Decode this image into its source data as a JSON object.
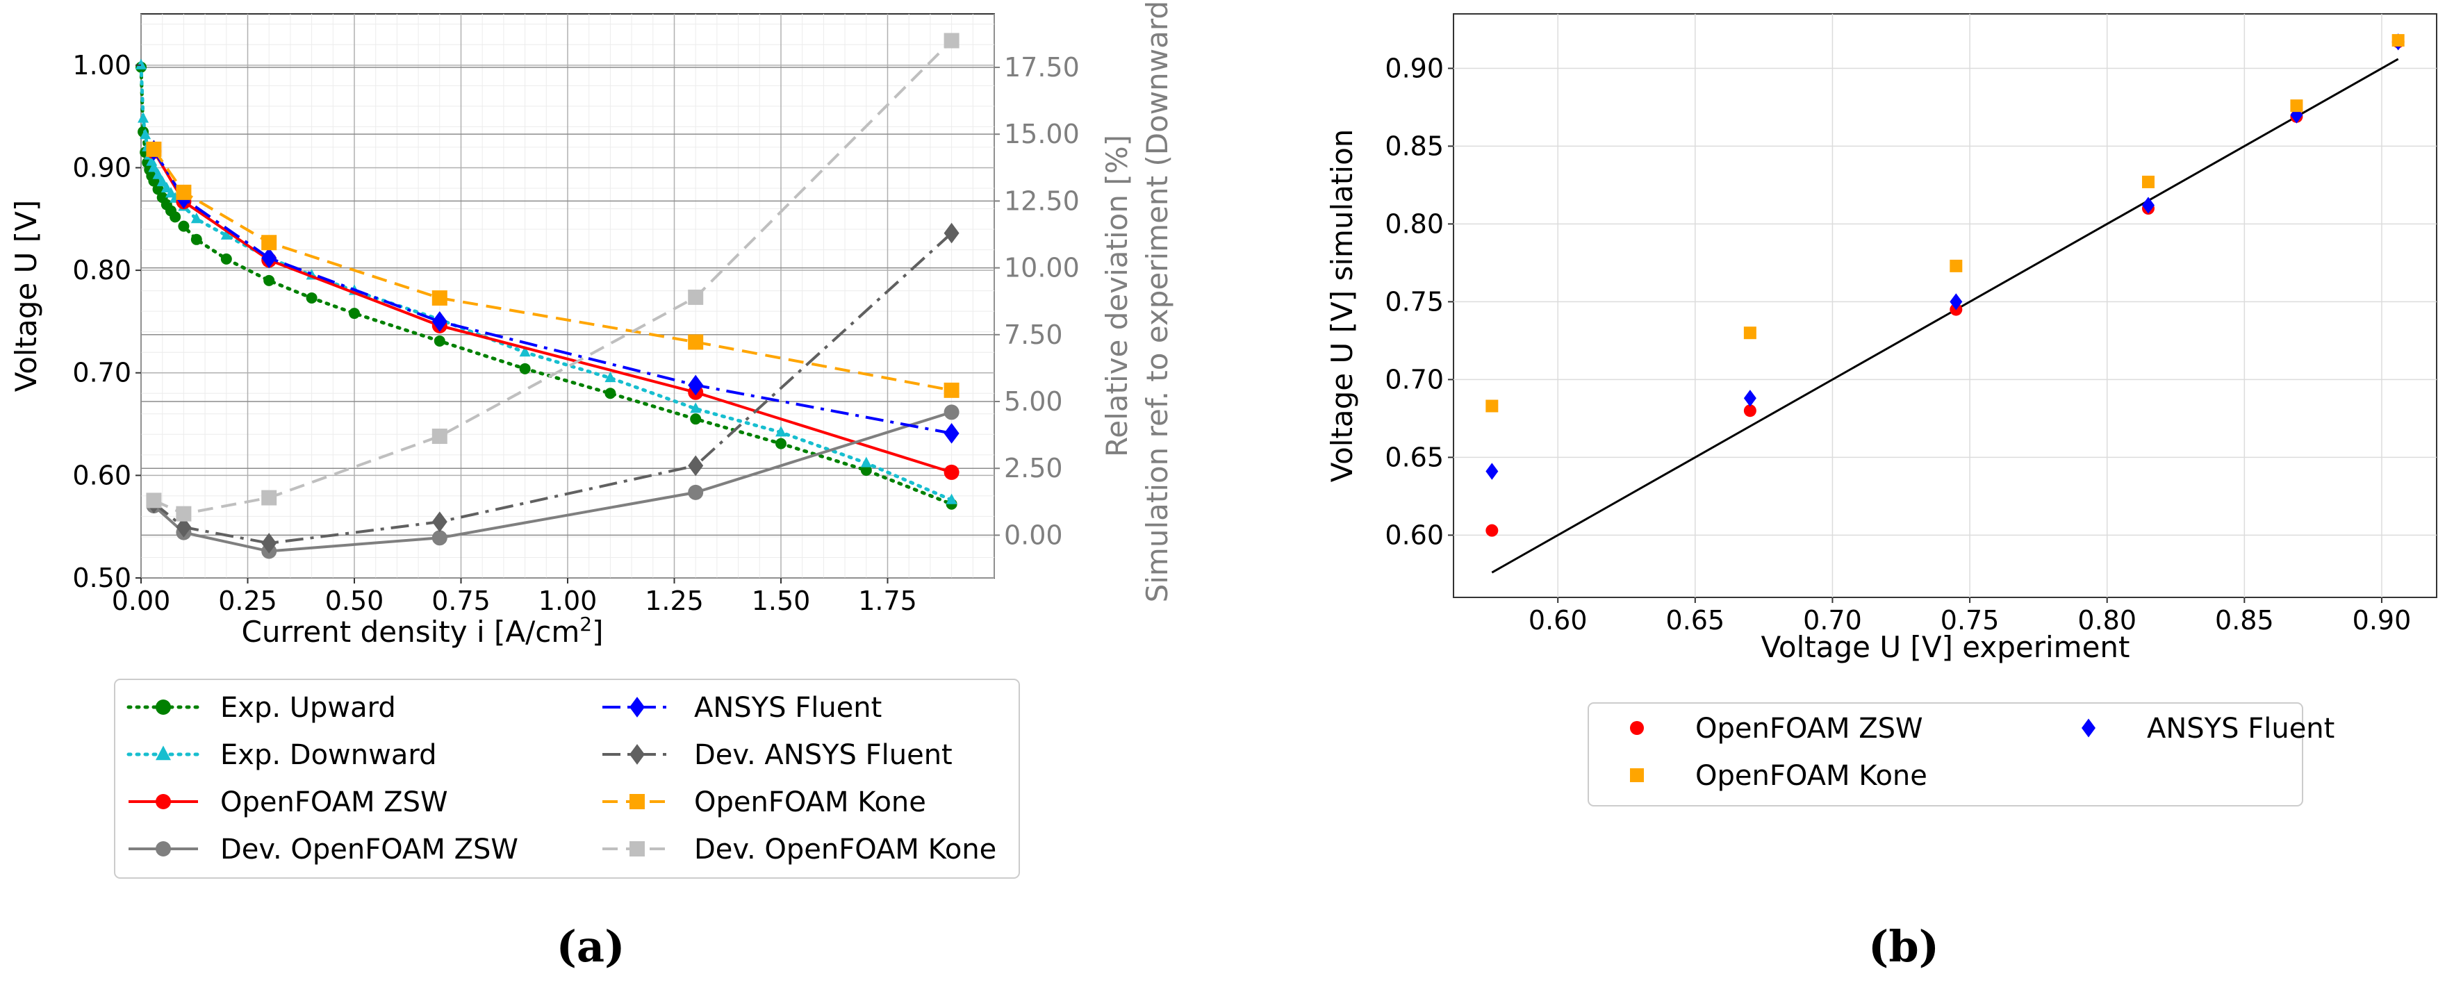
{
  "figure": {
    "panel_a_label": "(a)",
    "panel_b_label": "(b)"
  },
  "chart_data": [
    {
      "type": "line",
      "panel": "(a)",
      "xlabel": "Current density i [A/cm",
      "xlabel_sup": "2",
      "xlabel_tail": "]",
      "ylabel": "Voltage U [V]",
      "y2label_line1": "Relative deviation [%]",
      "y2label_line2": "Simulation ref. to experiment (Downward)",
      "xlim": [
        0.0,
        2.0
      ],
      "ylim": [
        0.5,
        1.05
      ],
      "y2lim": [
        -1.6,
        19.5
      ],
      "xticks": [
        0.0,
        0.25,
        0.5,
        0.75,
        1.0,
        1.25,
        1.5,
        1.75
      ],
      "xtick_labels": [
        "0.00",
        "0.25",
        "0.50",
        "0.75",
        "1.00",
        "1.25",
        "1.50",
        "1.75"
      ],
      "yticks": [
        0.5,
        0.6,
        0.7,
        0.8,
        0.9,
        1.0
      ],
      "ytick_labels": [
        "0.50",
        "0.60",
        "0.70",
        "0.80",
        "0.90",
        "1.00"
      ],
      "y2ticks": [
        0.0,
        2.5,
        5.0,
        7.5,
        10.0,
        12.5,
        15.0,
        17.5
      ],
      "y2tick_labels": [
        "0.00",
        "2.50",
        "5.00",
        "7.50",
        "10.00",
        "12.50",
        "15.00",
        "17.50"
      ],
      "grid": true,
      "legend_position": "below",
      "series": [
        {
          "name": "Exp. Upward",
          "axis": "left",
          "color": "#008000",
          "dash": "dotted",
          "marker": "circle",
          "x": [
            0.0,
            0.005,
            0.01,
            0.015,
            0.02,
            0.025,
            0.03,
            0.04,
            0.05,
            0.06,
            0.07,
            0.08,
            0.1,
            0.13,
            0.2,
            0.3,
            0.4,
            0.5,
            0.7,
            0.9,
            1.1,
            1.3,
            1.5,
            1.7,
            1.9
          ],
          "y": [
            0.998,
            0.935,
            0.915,
            0.905,
            0.898,
            0.892,
            0.887,
            0.879,
            0.871,
            0.864,
            0.858,
            0.852,
            0.843,
            0.83,
            0.811,
            0.79,
            0.773,
            0.758,
            0.731,
            0.704,
            0.68,
            0.655,
            0.631,
            0.605,
            0.572
          ]
        },
        {
          "name": "Exp. Downward",
          "axis": "left",
          "color": "#17becf",
          "dash": "dotted",
          "marker": "triangle",
          "x": [
            0.0,
            0.005,
            0.01,
            0.015,
            0.02,
            0.025,
            0.03,
            0.04,
            0.05,
            0.06,
            0.07,
            0.08,
            0.1,
            0.13,
            0.2,
            0.3,
            0.4,
            0.5,
            0.7,
            0.9,
            1.1,
            1.3,
            1.5,
            1.7,
            1.9
          ],
          "y": [
            1.0,
            0.948,
            0.932,
            0.92,
            0.912,
            0.906,
            0.9,
            0.893,
            0.886,
            0.88,
            0.875,
            0.87,
            0.862,
            0.85,
            0.834,
            0.812,
            0.795,
            0.78,
            0.752,
            0.72,
            0.695,
            0.665,
            0.642,
            0.612,
            0.576
          ]
        },
        {
          "name": "OpenFOAM ZSW",
          "axis": "left",
          "color": "#ff0000",
          "dash": "solid",
          "marker": "circle",
          "x": [
            0.03,
            0.1,
            0.3,
            0.7,
            1.3,
            1.9
          ],
          "y": [
            0.916,
            0.867,
            0.81,
            0.746,
            0.681,
            0.603
          ]
        },
        {
          "name": "Dev. OpenFOAM ZSW",
          "axis": "right",
          "color": "#7f7f7f",
          "dash": "solid",
          "marker": "circle",
          "x": [
            0.03,
            0.1,
            0.3,
            0.7,
            1.3,
            1.9
          ],
          "y": [
            1.1,
            0.1,
            -0.6,
            -0.1,
            1.6,
            4.6
          ]
        },
        {
          "name": "ANSYS Fluent",
          "axis": "left",
          "color": "#0000ff",
          "dash": "dashdot",
          "marker": "diamond",
          "x": [
            0.03,
            0.1,
            0.3,
            0.7,
            1.3,
            1.9
          ],
          "y": [
            0.917,
            0.87,
            0.812,
            0.75,
            0.688,
            0.641
          ]
        },
        {
          "name": "Dev. ANSYS Fluent",
          "axis": "right",
          "color": "#606060",
          "dash": "dashdot",
          "marker": "diamond",
          "x": [
            0.03,
            0.1,
            0.3,
            0.7,
            1.3,
            1.9
          ],
          "y": [
            1.2,
            0.3,
            -0.3,
            0.5,
            2.6,
            11.3
          ]
        },
        {
          "name": "OpenFOAM Kone",
          "axis": "left",
          "color": "#ffa500",
          "dash": "dashed",
          "marker": "square",
          "x": [
            0.03,
            0.1,
            0.3,
            0.7,
            1.3,
            1.9
          ],
          "y": [
            0.918,
            0.876,
            0.827,
            0.773,
            0.73,
            0.683
          ]
        },
        {
          "name": "Dev. OpenFOAM Kone",
          "axis": "right",
          "color": "#bfbfbf",
          "dash": "dashed",
          "marker": "square",
          "x": [
            0.03,
            0.1,
            0.3,
            0.7,
            1.3,
            1.9
          ],
          "y": [
            1.3,
            0.8,
            1.4,
            3.7,
            8.9,
            18.5
          ]
        }
      ],
      "legend_order": [
        0,
        4,
        1,
        5,
        2,
        6,
        3,
        7
      ]
    },
    {
      "type": "scatter",
      "panel": "(b)",
      "xlabel": "Voltage U [V] experiment",
      "ylabel": "Voltage U [V] simulation",
      "xlim": [
        0.562,
        0.92
      ],
      "ylim": [
        0.56,
        0.935
      ],
      "xticks": [
        0.6,
        0.65,
        0.7,
        0.75,
        0.8,
        0.85,
        0.9
      ],
      "xtick_labels": [
        "0.60",
        "0.65",
        "0.70",
        "0.75",
        "0.80",
        "0.85",
        "0.90"
      ],
      "yticks": [
        0.6,
        0.65,
        0.7,
        0.75,
        0.8,
        0.85,
        0.9
      ],
      "ytick_labels": [
        "0.60",
        "0.65",
        "0.70",
        "0.75",
        "0.80",
        "0.85",
        "0.90"
      ],
      "grid": true,
      "legend_position": "below",
      "reference_line": {
        "x": [
          0.576,
          0.906
        ],
        "y": [
          0.576,
          0.906
        ],
        "color": "#000000"
      },
      "series": [
        {
          "name": "OpenFOAM ZSW",
          "color": "#ff0000",
          "marker": "circle",
          "x": [
            0.576,
            0.67,
            0.745,
            0.815,
            0.869,
            0.906
          ],
          "y": [
            0.603,
            0.68,
            0.745,
            0.81,
            0.869,
            0.917
          ]
        },
        {
          "name": "ANSYS Fluent",
          "color": "#0000ff",
          "marker": "diamond",
          "x": [
            0.576,
            0.67,
            0.745,
            0.815,
            0.869,
            0.906
          ],
          "y": [
            0.641,
            0.688,
            0.75,
            0.812,
            0.87,
            0.917
          ]
        },
        {
          "name": "OpenFOAM Kone",
          "color": "#ffa500",
          "marker": "square",
          "x": [
            0.576,
            0.67,
            0.745,
            0.815,
            0.869,
            0.906
          ],
          "y": [
            0.683,
            0.73,
            0.773,
            0.827,
            0.876,
            0.918
          ]
        }
      ],
      "legend_order": [
        0,
        1,
        2
      ]
    }
  ]
}
